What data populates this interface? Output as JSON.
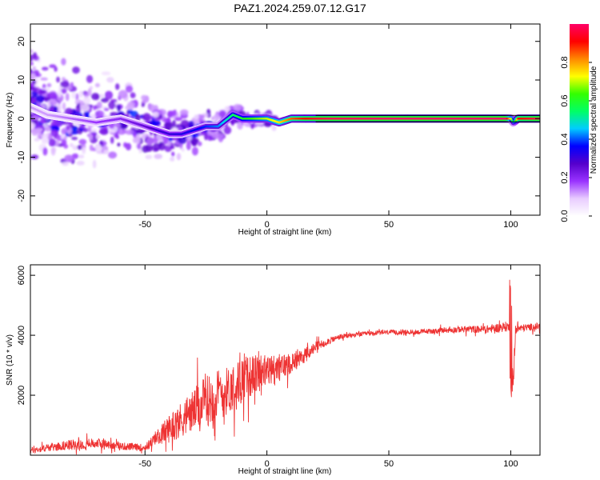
{
  "title": "PAZ1.2024.259.07.12.G17",
  "chart_data": [
    {
      "type": "heatmap",
      "xlabel": "Height of straight line (km)",
      "ylabel": "Frequency (Hz)",
      "xlim": [
        -97,
        112
      ],
      "ylim": [
        -25,
        24.5
      ],
      "xticks": [
        -50,
        0,
        50,
        100
      ],
      "xtick_labels": [
        "-50",
        "0",
        "50",
        "100"
      ],
      "yticks": [
        -20,
        -10,
        0,
        10,
        20
      ],
      "ytick_labels": [
        "-20",
        "-10",
        "0",
        "10",
        "20"
      ],
      "colorbar": {
        "label": "Normalized spectral amplitude",
        "range": [
          0,
          1
        ],
        "ticks": [
          0.0,
          0.2,
          0.4,
          0.6,
          0.8
        ],
        "tick_labels": [
          "0.0",
          "0.2",
          "0.4",
          "0.6",
          "0.8"
        ],
        "colormap": [
          "#ffffff",
          "#e8ccff",
          "#9933ff",
          "#5500cc",
          "#0000ff",
          "#00ccff",
          "#00ff66",
          "#33ff00",
          "#ffff00",
          "#ff8800",
          "#ff0000",
          "#ff0066"
        ]
      },
      "ridge": {
        "x": [
          -97,
          -90,
          -80,
          -70,
          -60,
          -50,
          -45,
          -40,
          -35,
          -30,
          -25,
          -20,
          -16,
          -14,
          -10,
          -5,
          0,
          5,
          10,
          15,
          20,
          25,
          50,
          98,
          100,
          101,
          103,
          112
        ],
        "y": [
          3,
          1,
          0,
          -1,
          0,
          -2,
          -3,
          -4,
          -4,
          -3,
          -2,
          -2,
          0,
          1,
          0,
          0,
          0,
          -1,
          0,
          0,
          0,
          0,
          0,
          0,
          0,
          -1,
          0,
          0
        ],
        "amplitude": [
          0.12,
          0.12,
          0.15,
          0.18,
          0.2,
          0.25,
          0.3,
          0.3,
          0.32,
          0.35,
          0.38,
          0.42,
          0.5,
          0.55,
          0.6,
          0.65,
          0.7,
          0.75,
          0.85,
          0.9,
          0.95,
          0.98,
          1.0,
          1.0,
          0.7,
          0.4,
          0.9,
          1.0
        ]
      },
      "grid": false
    },
    {
      "type": "line",
      "xlabel": "Height of straight line (km)",
      "ylabel": "SNR (10 * v/v)",
      "xlim": [
        -97,
        112
      ],
      "ylim": [
        0,
        6350
      ],
      "xticks": [
        -50,
        0,
        50,
        100
      ],
      "xtick_labels": [
        "-50",
        "0",
        "50",
        "100"
      ],
      "yticks": [
        2000,
        4000,
        6000
      ],
      "ytick_labels": [
        "2000",
        "4000",
        "6000"
      ],
      "series_color": "#ee3333",
      "x": [
        -97,
        -90,
        -80,
        -70,
        -60,
        -50,
        -45,
        -40,
        -35,
        -30,
        -25,
        -20,
        -15,
        -10,
        -5,
        0,
        5,
        10,
        15,
        20,
        25,
        30,
        40,
        50,
        60,
        70,
        80,
        90,
        95,
        99,
        100,
        101,
        102,
        105,
        112
      ],
      "y": [
        150,
        250,
        350,
        400,
        300,
        250,
        600,
        900,
        1200,
        1500,
        1800,
        2000,
        2200,
        2500,
        2700,
        2800,
        2900,
        3100,
        3300,
        3600,
        3800,
        3950,
        4050,
        4100,
        4100,
        4150,
        4200,
        4200,
        4250,
        4300,
        3500,
        2200,
        4200,
        4250,
        4300
      ],
      "noise": [
        180,
        200,
        300,
        280,
        220,
        200,
        400,
        800,
        1000,
        1200,
        1400,
        1500,
        1300,
        1300,
        1100,
        900,
        800,
        600,
        450,
        300,
        200,
        150,
        120,
        130,
        130,
        150,
        180,
        220,
        250,
        300,
        1200,
        800,
        250,
        200,
        200
      ],
      "grid": false
    }
  ]
}
